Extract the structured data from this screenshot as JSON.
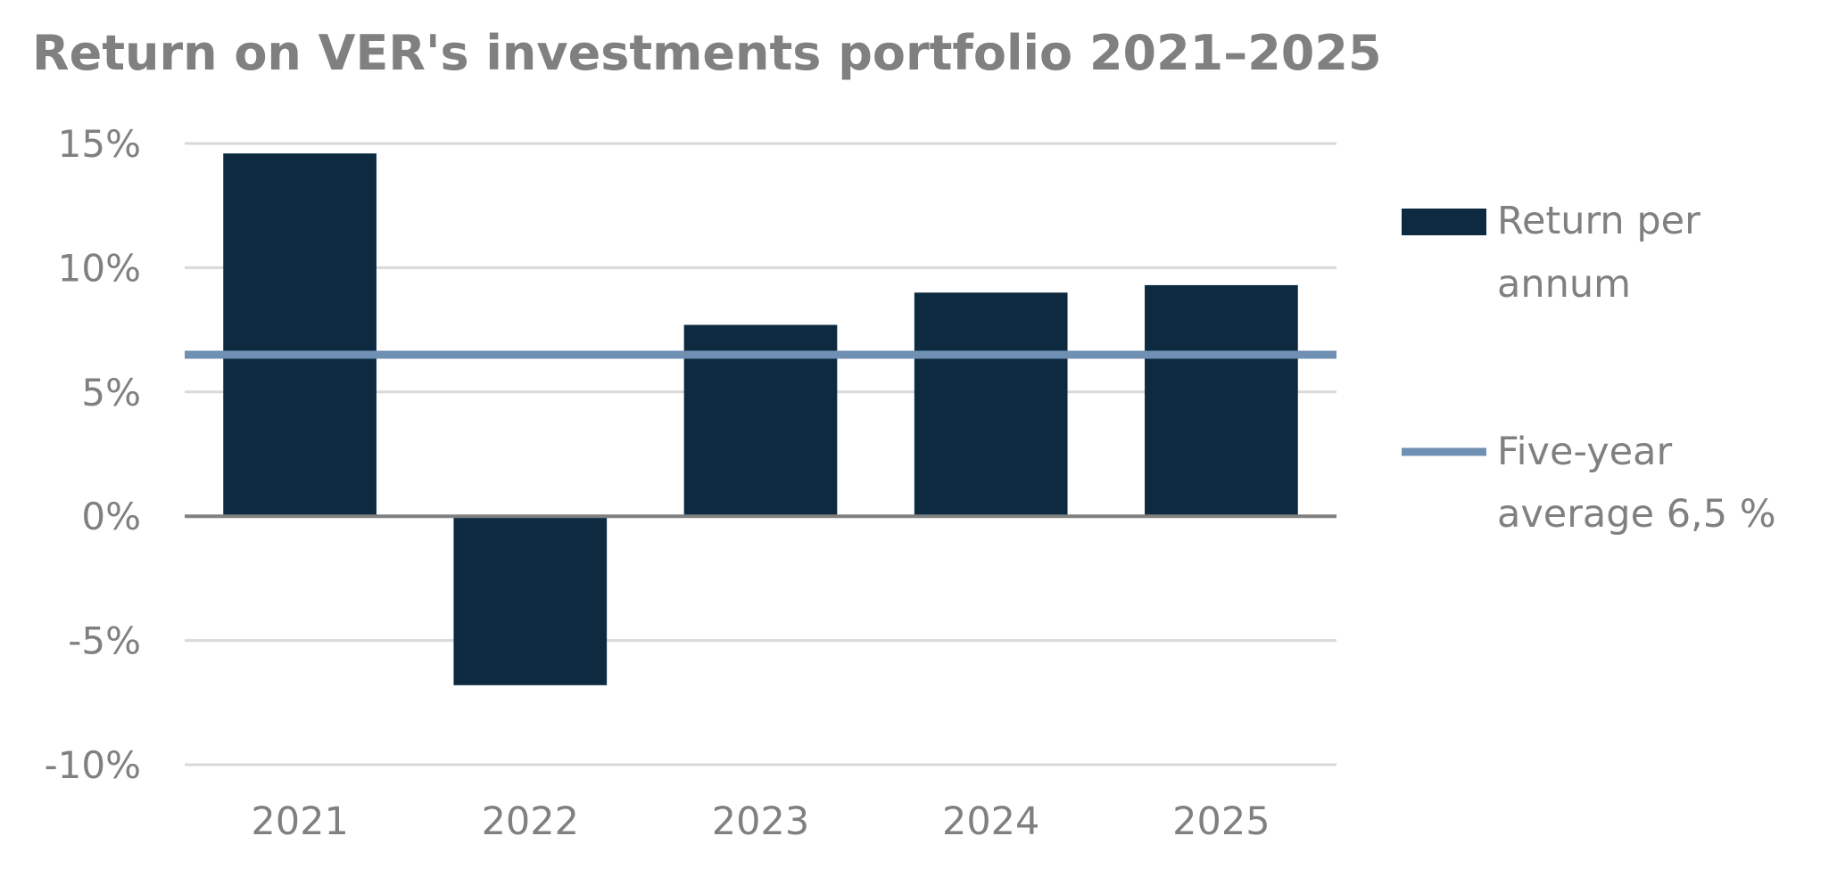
{
  "chart_data": {
    "type": "bar",
    "title": "Return on VER's investments portfolio 2021–2025",
    "xlabel": "",
    "ylabel": "",
    "categories": [
      "2021",
      "2022",
      "2023",
      "2024",
      "2025"
    ],
    "series": [
      {
        "name": "Return per annum",
        "type": "bar",
        "values": [
          14.6,
          -6.8,
          7.7,
          9.0,
          9.3
        ],
        "color": "#0d2a40"
      },
      {
        "name": "Five-year average 6,5 %",
        "type": "line",
        "values": [
          6.5,
          6.5,
          6.5,
          6.5,
          6.5
        ],
        "color": "#6f90b3"
      }
    ],
    "ylim": [
      -10,
      15
    ],
    "yticks": [
      15,
      10,
      5,
      0,
      -5,
      -10
    ],
    "ytick_labels": [
      "15%",
      "10%",
      "5%",
      "0%",
      "-5%",
      "-10%"
    ],
    "grid": true,
    "legend": {
      "placement": "right",
      "items": [
        {
          "lines": [
            "Return per",
            "annum"
          ]
        },
        {
          "lines": [
            "Five-year",
            "average 6,5 %"
          ]
        }
      ]
    }
  }
}
